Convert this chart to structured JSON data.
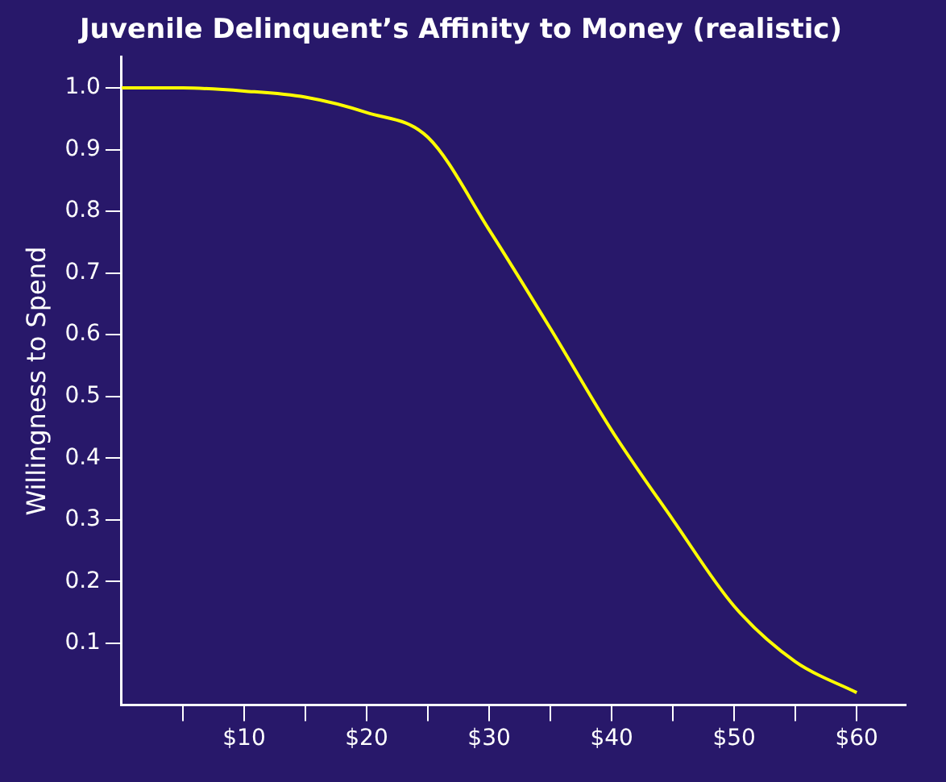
{
  "chart_data": {
    "type": "line",
    "title": "Juvenile Delinquent’s Affinity to Money (realistic)",
    "ylabel": "Willingness to Spend",
    "x": [
      0,
      5,
      10,
      15,
      20,
      25,
      30,
      35,
      40,
      45,
      50,
      55,
      60
    ],
    "series": [
      {
        "color": "#ffff00",
        "values": [
          1.0,
          1.0,
          0.995,
          0.985,
          0.96,
          0.92,
          0.77,
          0.61,
          0.445,
          0.3,
          0.16,
          0.07,
          0.02
        ]
      }
    ],
    "xlim": [
      0,
      64
    ],
    "ylim": [
      0,
      1.05
    ],
    "xticks": [
      {
        "value": 5,
        "label": null
      },
      {
        "value": 10,
        "label": "$10"
      },
      {
        "value": 15,
        "label": null
      },
      {
        "value": 20,
        "label": "$20"
      },
      {
        "value": 25,
        "label": null
      },
      {
        "value": 30,
        "label": "$30"
      },
      {
        "value": 35,
        "label": null
      },
      {
        "value": 40,
        "label": "$40"
      },
      {
        "value": 45,
        "label": null
      },
      {
        "value": 50,
        "label": "$50"
      },
      {
        "value": 55,
        "label": null
      },
      {
        "value": 60,
        "label": "$60"
      }
    ],
    "yticks": [
      {
        "value": 0.1,
        "label": "0.1"
      },
      {
        "value": 0.2,
        "label": "0.2"
      },
      {
        "value": 0.3,
        "label": "0.3"
      },
      {
        "value": 0.4,
        "label": "0.4"
      },
      {
        "value": 0.5,
        "label": "0.5"
      },
      {
        "value": 0.6,
        "label": "0.6"
      },
      {
        "value": 0.7,
        "label": "0.7"
      },
      {
        "value": 0.8,
        "label": "0.8"
      },
      {
        "value": 0.9,
        "label": "0.9"
      },
      {
        "value": 1.0,
        "label": "1.0"
      }
    ],
    "grid": false,
    "legend": false,
    "marker": "none",
    "line_style": "solid"
  }
}
